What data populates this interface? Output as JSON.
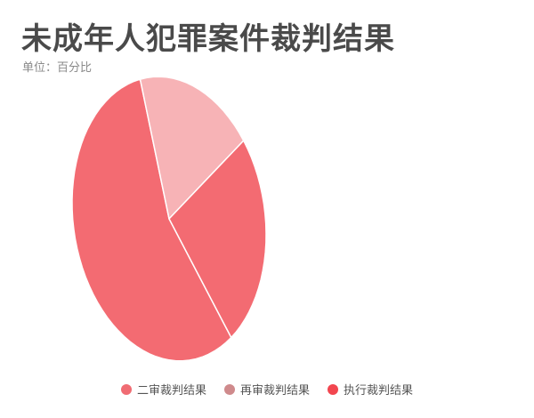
{
  "chart_data": {
    "type": "pie",
    "title": "未成年人犯罪案件裁判结果",
    "subtitle": "单位：百分比",
    "categories": [
      "二审裁判结果",
      "再审裁判结果",
      "执行裁判结果"
    ],
    "values": [
      90,
      30,
      40
    ],
    "colors": [
      "#f06c73",
      "#cf8a8c",
      "#f2464f"
    ],
    "legend": "bottom-center"
  }
}
